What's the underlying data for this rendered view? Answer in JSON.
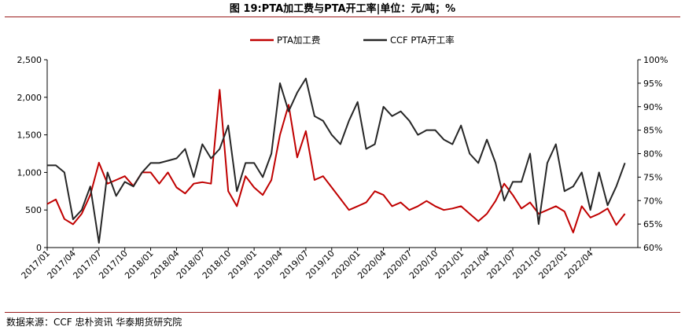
{
  "header": {
    "title": "图 19:PTA加工费与PTA开工率|单位：元/吨；%"
  },
  "footer": {
    "source": "数据来源：CCF 忠朴资讯  华泰期货研究院"
  },
  "chart_data": {
    "type": "line",
    "legend_position": "top-center",
    "grid": false,
    "x_tick_labels": [
      "2017/01",
      "2017/04",
      "2017/07",
      "2017/10",
      "2018/01",
      "2018/04",
      "2018/07",
      "2018/10",
      "2019/01",
      "2019/04",
      "2019/07",
      "2019/10",
      "2020/01",
      "2020/04",
      "2020/07",
      "2020/10",
      "2021/01",
      "2021/04",
      "2021/07",
      "2021/10",
      "2022/01",
      "2022/04"
    ],
    "y_left": {
      "min": 0,
      "max": 2500,
      "ticks": [
        0,
        500,
        1000,
        1500,
        2000,
        2500
      ],
      "tick_labels": [
        "0",
        "500",
        "1,000",
        "1,500",
        "2,000",
        "2,500"
      ]
    },
    "y_right": {
      "min": 60,
      "max": 100,
      "ticks": [
        60,
        65,
        70,
        75,
        80,
        85,
        90,
        95,
        100
      ],
      "tick_labels": [
        "60%",
        "65%",
        "70%",
        "75%",
        "80%",
        "85%",
        "90%",
        "95%",
        "100%"
      ]
    },
    "x_months": [
      0,
      1,
      2,
      3,
      4,
      5,
      6,
      7,
      8,
      9,
      10,
      11,
      12,
      13,
      14,
      15,
      16,
      17,
      18,
      19,
      20,
      21,
      22,
      23,
      24,
      25,
      26,
      27,
      28,
      29,
      30,
      31,
      32,
      33,
      34,
      35,
      36,
      37,
      38,
      39,
      40,
      41,
      42,
      43,
      44,
      45,
      46,
      47,
      48,
      49,
      50,
      51,
      52,
      53,
      54,
      55,
      56,
      57,
      58,
      59,
      60,
      61,
      62,
      63,
      64,
      65,
      66,
      67
    ],
    "series": [
      {
        "name": "PTA加工费",
        "axis": "left",
        "color": "#c00000",
        "values": [
          580,
          640,
          380,
          310,
          450,
          700,
          1130,
          850,
          900,
          950,
          820,
          1000,
          1000,
          850,
          1000,
          800,
          720,
          850,
          870,
          850,
          2100,
          750,
          550,
          950,
          800,
          700,
          900,
          1500,
          1900,
          1200,
          1550,
          900,
          950,
          800,
          650,
          500,
          550,
          600,
          750,
          700,
          550,
          600,
          500,
          550,
          620,
          550,
          500,
          520,
          550,
          450,
          350,
          450,
          620,
          850,
          700,
          520,
          600,
          450,
          500,
          550,
          480,
          200,
          550,
          400,
          450,
          520,
          300,
          450
        ]
      },
      {
        "name": "CCF PTA开工率",
        "axis": "right",
        "color": "#262626",
        "values": [
          77.5,
          77.5,
          76,
          66,
          68,
          73,
          61,
          76,
          71,
          74,
          73,
          76,
          78,
          78,
          78.5,
          79,
          81,
          75,
          82,
          79,
          81,
          86,
          72,
          78,
          78,
          75,
          80,
          95,
          89,
          93,
          96,
          88,
          87,
          84,
          82,
          87,
          91,
          81,
          82,
          90,
          88,
          89,
          87,
          84,
          85,
          85,
          83,
          82,
          86,
          80,
          78,
          83,
          78,
          70,
          74,
          74,
          80,
          65,
          78,
          82,
          72,
          73,
          76,
          68,
          76,
          69,
          73,
          78
        ]
      }
    ]
  }
}
